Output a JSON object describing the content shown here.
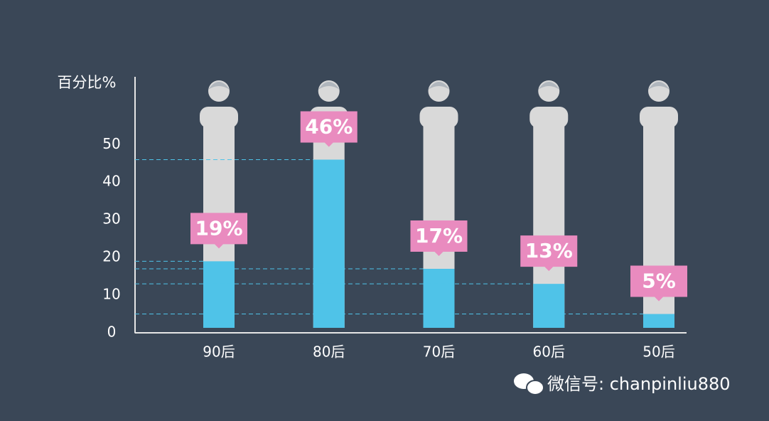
{
  "chart_data": {
    "type": "bar",
    "y_label": "百分比%",
    "categories": [
      "90后",
      "80后",
      "70后",
      "60后",
      "50后"
    ],
    "values": [
      19,
      46,
      17,
      13,
      5
    ],
    "value_labels": [
      "19%",
      "46%",
      "17%",
      "13%",
      "5%"
    ],
    "color": "#4fc3e8",
    "label_color": "#e98bbf",
    "ylim": [
      0,
      68
    ],
    "yticks": [
      0,
      10,
      20,
      30,
      40,
      50
    ]
  },
  "watermark": "微信号: chanpinliu880"
}
